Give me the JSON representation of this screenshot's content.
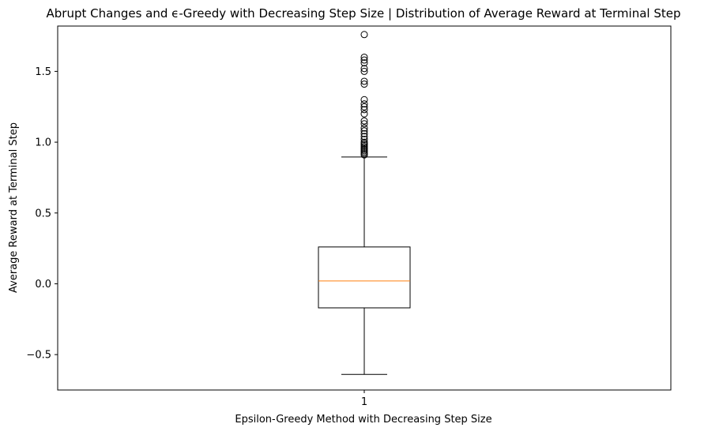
{
  "chart_data": {
    "type": "box",
    "title": "Abrupt Changes and ϵ-Greedy with Decreasing Step Size | Distribution of Average Reward at Terminal Step",
    "xlabel": "Epsilon-Greedy Method with Decreasing Step Size",
    "ylabel": "Average Reward at Terminal Step",
    "categories": [
      "1"
    ],
    "ylim": [
      -0.75,
      1.82
    ],
    "yticks": [
      -0.5,
      0.0,
      0.5,
      1.0,
      1.5
    ],
    "ytick_labels": [
      "−0.5",
      "0.0",
      "0.5",
      "1.0",
      "1.5"
    ],
    "grid": false,
    "series": [
      {
        "whisker_low": -0.64,
        "q1": -0.17,
        "median": 0.02,
        "q3": 0.26,
        "whisker_high": 0.895,
        "outliers": [
          0.91,
          0.92,
          0.93,
          0.94,
          0.95,
          0.96,
          0.97,
          0.98,
          0.99,
          1.0,
          1.02,
          1.04,
          1.06,
          1.08,
          1.1,
          1.13,
          1.15,
          1.2,
          1.23,
          1.25,
          1.27,
          1.3,
          1.41,
          1.43,
          1.5,
          1.52,
          1.56,
          1.58,
          1.6,
          1.76
        ]
      }
    ],
    "colors": {
      "box": "#000000",
      "median": "#ff7f0e",
      "axis": "#000000",
      "background": "#ffffff"
    }
  }
}
